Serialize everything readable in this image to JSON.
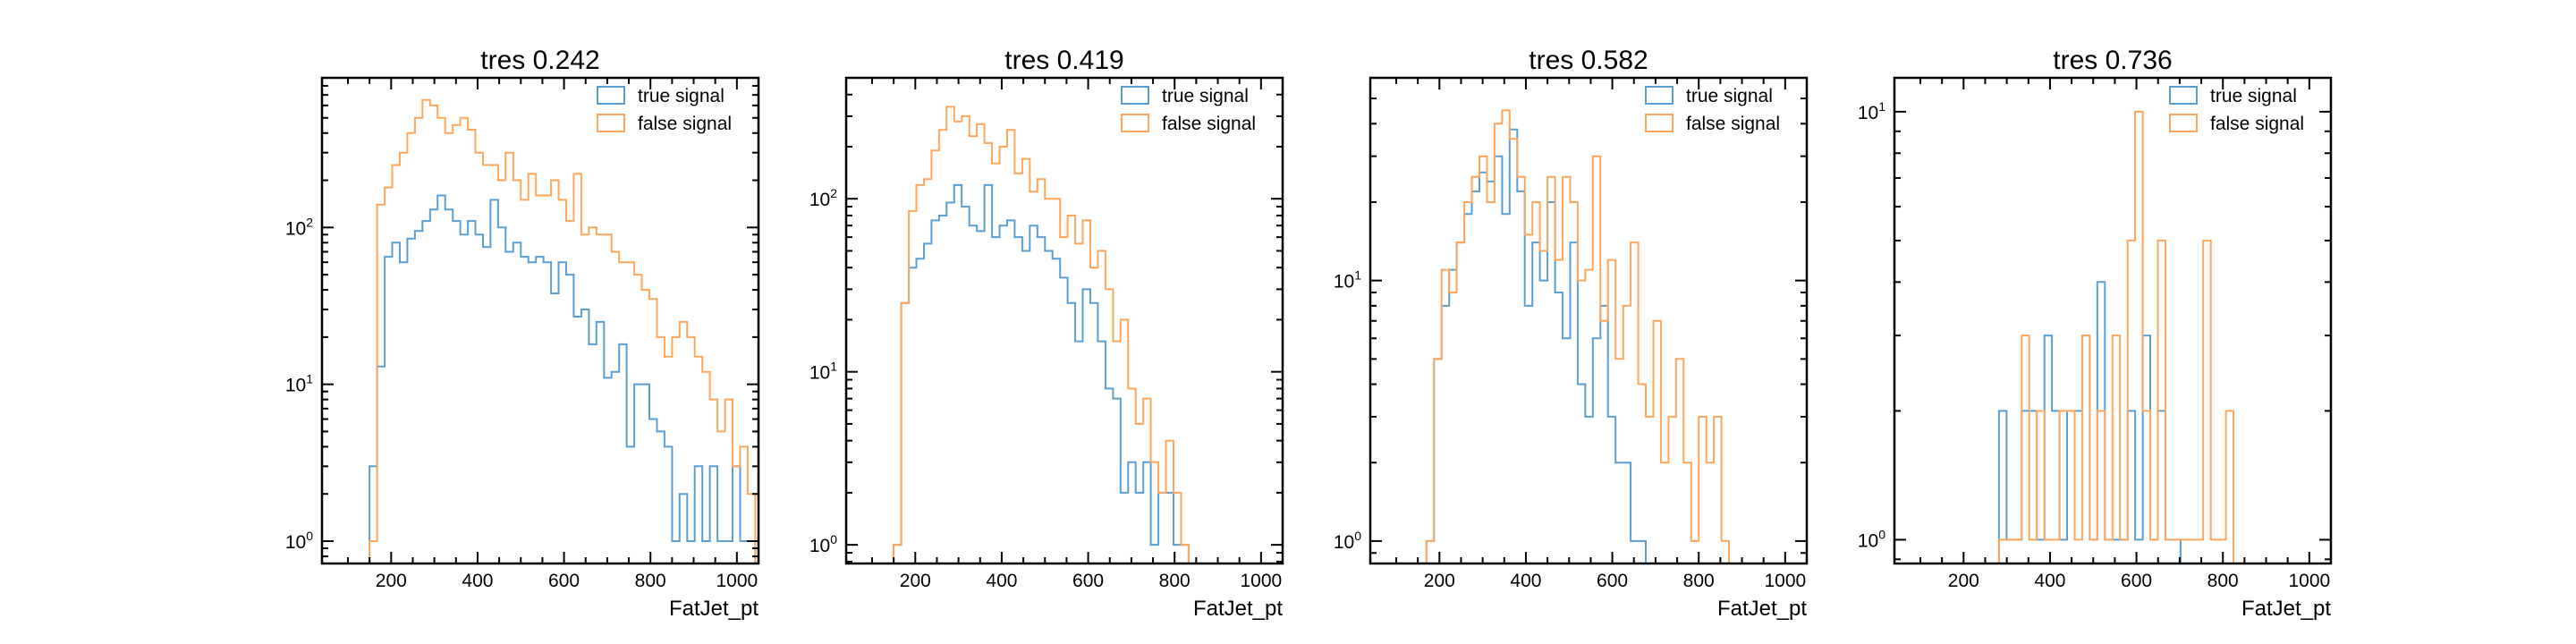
{
  "colors": {
    "true_signal": "#5a9fd4",
    "false_signal": "#ffa65c",
    "axis": "#000000"
  },
  "chart_data": [
    {
      "type": "histogram",
      "title": "tres 0.242",
      "xlabel": "FatJet_pt",
      "xlim": [
        40,
        1050
      ],
      "ylim": [
        0.72,
        900
      ],
      "log_y": true,
      "x_ticks": [
        "200",
        "400",
        "600",
        "800",
        "1000"
      ],
      "y_ticks": [
        {
          "base": "10",
          "exp": "0",
          "value": 1
        },
        {
          "base": "10",
          "exp": "1",
          "value": 10
        },
        {
          "base": "10",
          "exp": "2",
          "value": 100
        }
      ],
      "legend_placement": "top-right",
      "bins": {
        "start": 150,
        "width": 17.5
      },
      "series": [
        {
          "name": "true signal",
          "color_key": "true_signal",
          "values": [
            3,
            13,
            65,
            80,
            60,
            85,
            95,
            110,
            130,
            160,
            130,
            110,
            90,
            110,
            90,
            75,
            150,
            100,
            70,
            80,
            65,
            60,
            65,
            60,
            38,
            60,
            50,
            27,
            30,
            18,
            25,
            11,
            12,
            18,
            4,
            10,
            10,
            6,
            5,
            4,
            1,
            2,
            1,
            3,
            1,
            3,
            1,
            1,
            3,
            1,
            1
          ]
        },
        {
          "name": "false signal",
          "color_key": "false_signal",
          "values": [
            1,
            140,
            180,
            250,
            300,
            400,
            500,
            650,
            600,
            500,
            400,
            450,
            500,
            420,
            300,
            250,
            250,
            200,
            300,
            200,
            150,
            220,
            160,
            160,
            200,
            150,
            110,
            220,
            90,
            100,
            90,
            90,
            70,
            60,
            60,
            50,
            40,
            35,
            20,
            15,
            20,
            25,
            20,
            15,
            12,
            8,
            5,
            8,
            3,
            4,
            2
          ]
        }
      ]
    },
    {
      "type": "histogram",
      "title": "tres 0.419",
      "xlabel": "FatJet_pt",
      "xlim": [
        40,
        1050
      ],
      "ylim": [
        0.78,
        500
      ],
      "log_y": true,
      "x_ticks": [
        "200",
        "400",
        "600",
        "800",
        "1000"
      ],
      "y_ticks": [
        {
          "base": "10",
          "exp": "0",
          "value": 1
        },
        {
          "base": "10",
          "exp": "1",
          "value": 10
        },
        {
          "base": "10",
          "exp": "2",
          "value": 100
        }
      ],
      "legend_placement": "top-right",
      "bins": {
        "start": 150,
        "width": 17.5
      },
      "series": [
        {
          "name": "true signal",
          "color_key": "true_signal",
          "values": [
            1,
            25,
            40,
            45,
            55,
            75,
            80,
            95,
            120,
            90,
            70,
            65,
            120,
            60,
            70,
            75,
            60,
            50,
            70,
            60,
            50,
            45,
            35,
            25,
            15,
            30,
            25,
            15,
            8,
            7,
            2,
            3,
            2,
            3,
            1,
            2,
            2,
            1,
            1
          ]
        },
        {
          "name": "false signal",
          "color_key": "false_signal",
          "values": [
            1,
            25,
            85,
            120,
            130,
            190,
            250,
            340,
            280,
            300,
            230,
            270,
            210,
            160,
            200,
            250,
            140,
            170,
            110,
            130,
            100,
            100,
            60,
            80,
            55,
            75,
            40,
            50,
            30,
            15,
            20,
            8,
            5,
            7,
            3,
            2,
            4,
            2,
            1
          ]
        }
      ]
    },
    {
      "type": "histogram",
      "title": "tres 0.582",
      "xlabel": "FatJet_pt",
      "xlim": [
        40,
        1050
      ],
      "ylim": [
        0.82,
        60
      ],
      "log_y": true,
      "x_ticks": [
        "200",
        "400",
        "600",
        "800",
        "1000"
      ],
      "y_ticks": [
        {
          "base": "10",
          "exp": "0",
          "value": 1
        },
        {
          "base": "10",
          "exp": "1",
          "value": 10
        }
      ],
      "legend_placement": "top-right",
      "bins": {
        "start": 170,
        "width": 17.5
      },
      "series": [
        {
          "name": "true signal",
          "color_key": "true_signal",
          "values": [
            1,
            5,
            8,
            11,
            14,
            18,
            22,
            26,
            24,
            30,
            18,
            38,
            22,
            8,
            14,
            10,
            20,
            9,
            6,
            14,
            4,
            3,
            6,
            8,
            3,
            2,
            2,
            1,
            1
          ]
        },
        {
          "name": "false signal",
          "color_key": "false_signal",
          "values": [
            1,
            5,
            11,
            9,
            14,
            20,
            25,
            30,
            20,
            40,
            45,
            35,
            25,
            15,
            20,
            13,
            25,
            12,
            25,
            20,
            10,
            11,
            30,
            7,
            12,
            5,
            8,
            14,
            4,
            3,
            7,
            2,
            3,
            5,
            2,
            1,
            3,
            2,
            3,
            1
          ]
        }
      ]
    },
    {
      "type": "histogram",
      "title": "tres 0.736",
      "xlabel": "FatJet_pt",
      "xlim": [
        40,
        1050
      ],
      "ylim": [
        0.88,
        12
      ],
      "log_y": true,
      "x_ticks": [
        "200",
        "400",
        "600",
        "800",
        "1000"
      ],
      "y_ticks": [
        {
          "base": "10",
          "exp": "0",
          "value": 1
        },
        {
          "base": "10",
          "exp": "1",
          "value": 10
        }
      ],
      "legend_placement": "top-right",
      "bins": {
        "start": 282,
        "width": 17.5
      },
      "series": [
        {
          "name": "true signal",
          "color_key": "true_signal",
          "values": [
            2,
            1,
            1,
            2,
            2,
            1,
            3,
            2,
            1,
            2,
            2,
            3,
            1,
            4,
            1,
            1,
            1,
            2,
            1,
            3,
            1,
            2,
            1,
            1
          ]
        },
        {
          "name": "false signal",
          "color_key": "false_signal",
          "values": [
            1,
            1,
            1,
            3,
            1,
            2,
            1,
            1,
            2,
            2,
            1,
            3,
            1,
            2,
            1,
            3,
            1,
            5,
            10,
            2,
            1,
            5,
            1,
            1,
            1,
            1,
            1,
            5,
            1,
            1,
            2
          ]
        }
      ]
    }
  ]
}
